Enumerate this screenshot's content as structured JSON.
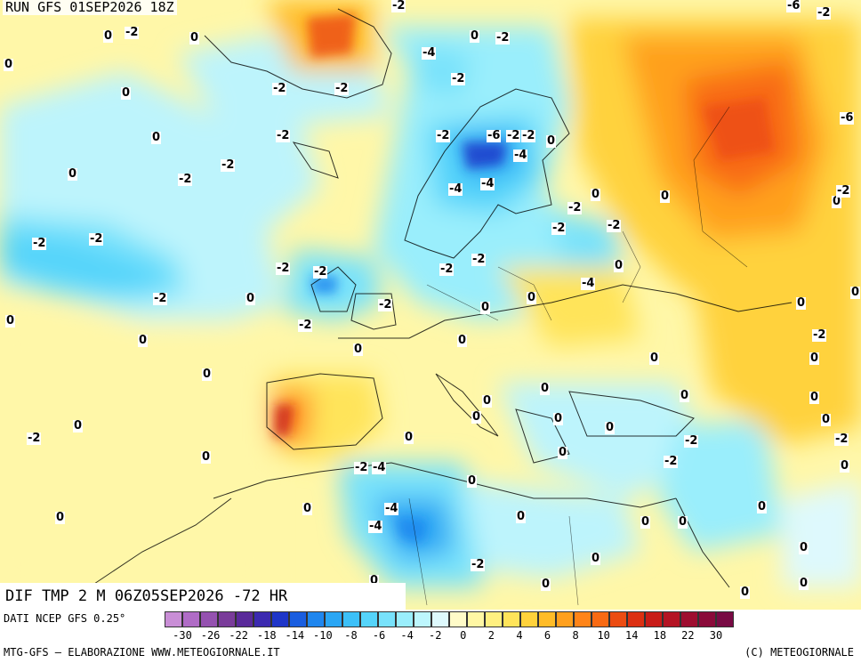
{
  "header": {
    "run": "RUN GFS 01SEP2026 18Z"
  },
  "field": {
    "title": "DIF TMP 2 M 06Z05SEP2026 -72 HR"
  },
  "footer": {
    "source": "DATI NCEP GFS 0.25°",
    "credit_left": "MTG-GFS — ELABORAZIONE WWW.METEOGIORNALE.IT",
    "credit_right": "(C) METEOGIORNALE"
  },
  "legend": {
    "ticks": [
      "-30",
      "-26",
      "-22",
      "-18",
      "-14",
      "-10",
      "-8",
      "-6",
      "-4",
      "-2",
      "0",
      "2",
      "4",
      "6",
      "8",
      "10",
      "14",
      "18",
      "22",
      "30"
    ],
    "colors": [
      "#c98ed6",
      "#b06cc6",
      "#9552b0",
      "#7a3c9a",
      "#5a2a9a",
      "#3c2ab0",
      "#1f36c8",
      "#1a5ee0",
      "#1f86ee",
      "#2aa6f4",
      "#3cc0f8",
      "#55d4fa",
      "#78e2fb",
      "#9aeefc",
      "#bdf6fd",
      "#def9fd",
      "#fffbc8",
      "#fff7a4",
      "#fff080",
      "#ffe45a",
      "#ffd23c",
      "#ffbc28",
      "#ffa01e",
      "#ff8418",
      "#f86a14",
      "#ec4c12",
      "#dc3012",
      "#c81c18",
      "#b41424",
      "#9e0e30",
      "#8a0a3a",
      "#780a44"
    ]
  },
  "map_labels": [
    {
      "t": "-2"
    },
    {
      "t": "0"
    },
    {
      "t": "0"
    },
    {
      "t": "-2"
    },
    {
      "t": "0"
    },
    {
      "t": "0"
    },
    {
      "t": "-2"
    },
    {
      "t": "-2"
    },
    {
      "t": "-4"
    },
    {
      "t": "-2"
    },
    {
      "t": "0"
    },
    {
      "t": "-2"
    },
    {
      "t": "-2"
    },
    {
      "t": "0"
    },
    {
      "t": "-2"
    },
    {
      "t": "-4"
    },
    {
      "t": "-2"
    },
    {
      "t": "-2"
    },
    {
      "t": "0"
    },
    {
      "t": "0"
    },
    {
      "t": "-2"
    },
    {
      "t": "-6"
    },
    {
      "t": "-2"
    },
    {
      "t": "0"
    },
    {
      "t": "-4"
    },
    {
      "t": "-4"
    },
    {
      "t": "-4"
    },
    {
      "t": "0"
    },
    {
      "t": "0"
    },
    {
      "t": "-2"
    },
    {
      "t": "-2"
    },
    {
      "t": "-2"
    },
    {
      "t": "-2"
    },
    {
      "t": "-2"
    },
    {
      "t": "-2"
    },
    {
      "t": "-2"
    },
    {
      "t": "0"
    },
    {
      "t": "-2"
    },
    {
      "t": "-2"
    },
    {
      "t": "-2"
    },
    {
      "t": "0"
    },
    {
      "t": "0"
    },
    {
      "t": "-2"
    },
    {
      "t": "-4"
    },
    {
      "t": "0"
    },
    {
      "t": "0"
    },
    {
      "t": "-2"
    },
    {
      "t": "0"
    },
    {
      "t": "0"
    },
    {
      "t": "0"
    },
    {
      "t": "0"
    },
    {
      "t": "0"
    },
    {
      "t": "-2"
    },
    {
      "t": "0"
    },
    {
      "t": "0"
    },
    {
      "t": "-2"
    },
    {
      "t": "0"
    },
    {
      "t": "0"
    },
    {
      "t": "0"
    },
    {
      "t": "0"
    },
    {
      "t": "0"
    },
    {
      "t": "0"
    },
    {
      "t": "0"
    },
    {
      "t": "0"
    },
    {
      "t": "-2"
    },
    {
      "t": "0"
    },
    {
      "t": "0"
    },
    {
      "t": "-2"
    },
    {
      "t": "-2"
    },
    {
      "t": "0"
    },
    {
      "t": "0"
    },
    {
      "t": "-2"
    },
    {
      "t": "-4"
    },
    {
      "t": "0"
    },
    {
      "t": "0"
    },
    {
      "t": "-4"
    },
    {
      "t": "-4"
    },
    {
      "t": "0"
    },
    {
      "t": "0"
    },
    {
      "t": "0"
    },
    {
      "t": "0"
    },
    {
      "t": "-2"
    },
    {
      "t": "0"
    },
    {
      "t": "0"
    },
    {
      "t": "0"
    },
    {
      "t": "-2"
    },
    {
      "t": "0"
    },
    {
      "t": "0"
    },
    {
      "t": "0"
    },
    {
      "t": "0"
    },
    {
      "t": "0"
    },
    {
      "t": "0"
    },
    {
      "t": "-2"
    },
    {
      "t": "-6"
    },
    {
      "t": "-6"
    },
    {
      "t": "0"
    }
  ]
}
